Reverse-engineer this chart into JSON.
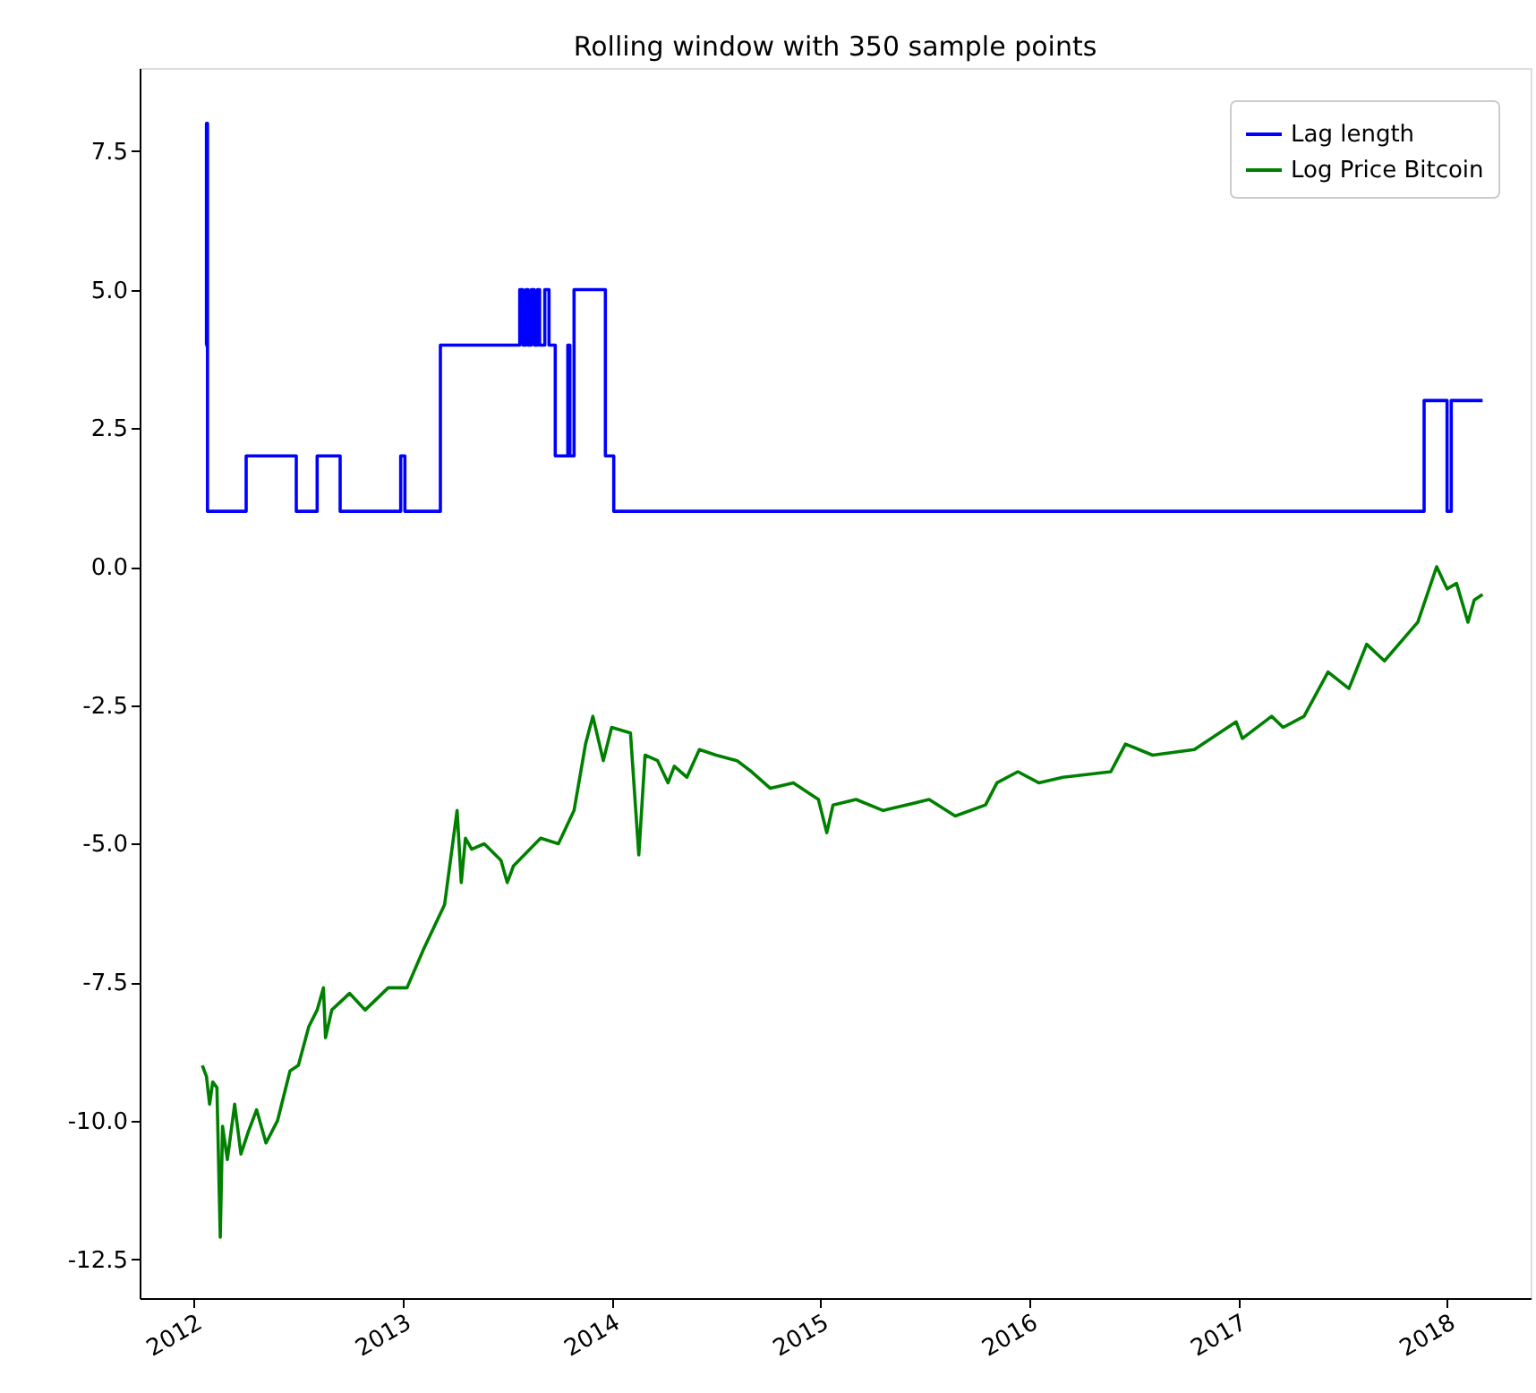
{
  "chart_data": {
    "type": "line",
    "title": "Rolling window with 350 sample points",
    "xlim": [
      2011.74,
      2018.4
    ],
    "xticks": [
      2012,
      2013,
      2014,
      2015,
      2016,
      2017,
      2018
    ],
    "ylim": [
      -13.2,
      9.0
    ],
    "yticks": [
      {
        "value": -12.5,
        "label": "-12.5"
      },
      {
        "value": -10,
        "label": "-10.0"
      },
      {
        "value": -7.5,
        "label": "-7.5"
      },
      {
        "value": -5,
        "label": "-5.0"
      },
      {
        "value": -2.5,
        "label": "-2.5"
      },
      {
        "value": 0,
        "label": "0.0"
      },
      {
        "value": 2.5,
        "label": "2.5"
      },
      {
        "value": 5,
        "label": "5.0"
      },
      {
        "value": 7.5,
        "label": "7.5"
      }
    ],
    "grid": false,
    "legend": "top right",
    "series": [
      {
        "name": "Lag length",
        "type": "step",
        "color": "#0000ff",
        "x": [
          2012.055,
          2012.06,
          2012.065,
          2012.25,
          2012.49,
          2012.59,
          2012.7,
          2012.99,
          2013.01,
          2013.18,
          2013.56,
          2013.575,
          2013.59,
          2013.6,
          2013.615,
          2013.63,
          2013.645,
          2013.655,
          2013.68,
          2013.7,
          2013.73,
          2013.79,
          2013.8,
          2013.82,
          2013.97,
          2014.01,
          2017.89,
          2018.0,
          2018.02,
          2018.17
        ],
        "values": [
          4,
          8,
          1,
          2,
          1,
          2,
          1,
          2,
          1,
          4,
          5,
          4,
          5,
          4,
          5,
          4,
          5,
          4,
          5,
          4,
          2,
          4,
          2,
          5,
          2,
          1,
          3,
          1,
          3,
          3
        ]
      },
      {
        "name": "Log Price Bitcoin",
        "color": "#008000",
        "x": [
          2012.04,
          2012.06,
          2012.075,
          2012.09,
          2012.11,
          2012.126,
          2012.137,
          2012.16,
          2012.195,
          2012.225,
          2012.26,
          2012.3,
          2012.345,
          2012.4,
          2012.46,
          2012.5,
          2012.55,
          2012.59,
          2012.62,
          2012.63,
          2012.66,
          2012.745,
          2012.82,
          2012.93,
          2013.02,
          2013.1,
          2013.2,
          2013.26,
          2013.28,
          2013.3,
          2013.33,
          2013.39,
          2013.47,
          2013.5,
          2013.53,
          2013.66,
          2013.745,
          2013.82,
          2013.875,
          2013.91,
          2013.96,
          2014.0,
          2014.09,
          2014.13,
          2014.16,
          2014.22,
          2014.27,
          2014.3,
          2014.36,
          2014.42,
          2014.5,
          2014.6,
          2014.67,
          2014.76,
          2014.87,
          2014.99,
          2015.03,
          2015.06,
          2015.17,
          2015.3,
          2015.52,
          2015.645,
          2015.79,
          2015.845,
          2015.945,
          2016.045,
          2016.16,
          2016.39,
          2016.46,
          2016.59,
          2016.79,
          2016.99,
          2017.02,
          2017.16,
          2017.215,
          2017.315,
          2017.43,
          2017.53,
          2017.615,
          2017.7,
          2017.86,
          2017.95,
          2018.0,
          2018.045,
          2018.1,
          2018.13,
          2018.17
        ],
        "values": [
          -9.0,
          -9.2,
          -9.7,
          -9.3,
          -9.4,
          -12.1,
          -10.1,
          -10.7,
          -9.7,
          -10.6,
          -10.2,
          -9.8,
          -10.4,
          -10.0,
          -9.1,
          -9.0,
          -8.3,
          -8.0,
          -7.6,
          -8.5,
          -8.0,
          -7.7,
          -8.0,
          -7.6,
          -7.6,
          -6.9,
          -6.1,
          -4.4,
          -5.7,
          -4.9,
          -5.1,
          -5.0,
          -5.3,
          -5.7,
          -5.4,
          -4.9,
          -5.0,
          -4.4,
          -3.2,
          -2.7,
          -3.5,
          -2.9,
          -3.0,
          -5.2,
          -3.4,
          -3.5,
          -3.9,
          -3.6,
          -3.8,
          -3.3,
          -3.4,
          -3.5,
          -3.7,
          -4.0,
          -3.9,
          -4.2,
          -4.8,
          -4.3,
          -4.2,
          -4.4,
          -4.2,
          -4.5,
          -4.3,
          -3.9,
          -3.7,
          -3.9,
          -3.8,
          -3.7,
          -3.2,
          -3.4,
          -3.3,
          -2.8,
          -3.1,
          -2.7,
          -2.9,
          -2.7,
          -1.9,
          -2.2,
          -1.4,
          -1.7,
          -1.0,
          0.0,
          -0.4,
          -0.3,
          -1.0,
          -0.6,
          -0.5
        ]
      }
    ]
  }
}
